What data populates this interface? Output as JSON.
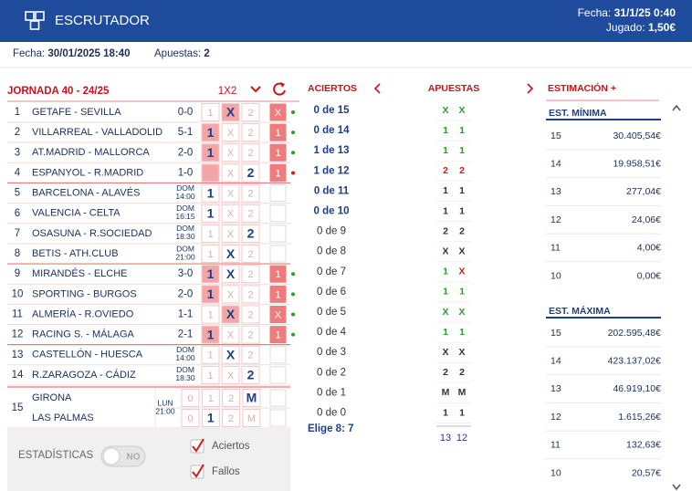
{
  "header": {
    "title": "ESCRUTADOR",
    "date_label": "Fecha:",
    "date": "31/1/25 0:40",
    "played_label": "Jugado:",
    "played": "1,50€"
  },
  "info": {
    "date_label": "Fecha:",
    "date": "30/01/2025 18:40",
    "bets_label": "Apuestas:",
    "bets": "2"
  },
  "left": {
    "title": "JORNADA 40 - 24/25",
    "mode": "1X2",
    "signs": [
      "1",
      "X",
      "2"
    ],
    "goal_signs": [
      "0",
      "1",
      "2",
      "M"
    ]
  },
  "matches": [
    {
      "n": "1",
      "teams": "GETAFE - SEVILLA",
      "score": "0-0",
      "sign": "X",
      "bet": [
        "X"
      ],
      "status": "hit"
    },
    {
      "n": "2",
      "teams": "VILLARREAL - VALLADOLID",
      "score": "5-1",
      "sign": "1",
      "bet": [
        "1"
      ],
      "status": "hit"
    },
    {
      "n": "3",
      "teams": "AT.MADRID - MALLORCA",
      "score": "2-0",
      "sign": "1",
      "bet": [
        "1"
      ],
      "status": "hit"
    },
    {
      "n": "4",
      "teams": "ESPANYOL - R.MADRID",
      "score": "1-0",
      "sign": "1",
      "bet": [
        "2"
      ],
      "status": "miss"
    },
    {
      "n": "5",
      "teams": "BARCELONA - ALAVÉS",
      "day": "DOM",
      "time": "14:00",
      "bet": [
        "1"
      ]
    },
    {
      "n": "6",
      "teams": "VALENCIA - CELTA",
      "day": "DOM",
      "time": "16:15",
      "bet": [
        "1"
      ]
    },
    {
      "n": "7",
      "teams": "OSASUNA - R.SOCIEDAD",
      "day": "DOM",
      "time": "18:30",
      "bet": [
        "2"
      ]
    },
    {
      "n": "8",
      "teams": "BETIS - ATH.CLUB",
      "day": "DOM",
      "time": "21:00",
      "bet": [
        "X"
      ]
    },
    {
      "n": "9",
      "teams": "MIRANDÉS - ELCHE",
      "score": "3-0",
      "sign": "1",
      "bet": [
        "1",
        "X"
      ],
      "status": "hit"
    },
    {
      "n": "10",
      "teams": "SPORTING - BURGOS",
      "score": "2-0",
      "sign": "1",
      "bet": [
        "1"
      ],
      "status": "hit"
    },
    {
      "n": "11",
      "teams": "ALMERÍA - R.OVIEDO",
      "score": "1-1",
      "sign": "X",
      "bet": [
        "X"
      ],
      "status": "hit"
    },
    {
      "n": "12",
      "teams": "RACING S. - MÁLAGA",
      "score": "2-1",
      "sign": "1",
      "bet": [
        "1"
      ],
      "status": "hit"
    },
    {
      "n": "13",
      "teams": "CASTELLÓN - HUESCA",
      "day": "DOM",
      "time": "14:00",
      "bet": [
        "X"
      ]
    },
    {
      "n": "14",
      "teams": "R.ZARAGOZA - CÁDIZ",
      "day": "DOM",
      "time": "18:30",
      "bet": [
        "2"
      ]
    }
  ],
  "pleno": {
    "n": "15",
    "home": "GIRONA",
    "away": "LAS PALMAS",
    "day": "LUN",
    "time": "21:00",
    "home_bet": [
      "M"
    ],
    "away_bet": [
      "1"
    ]
  },
  "middle": {
    "hits_label": "ACIERTOS",
    "bets_label": "APUESTAS",
    "rows": [
      {
        "label": "0 de 15",
        "bets": [
          "X",
          "X"
        ],
        "states": [
          "hit",
          "hit"
        ]
      },
      {
        "label": "0 de 14",
        "bets": [
          "1",
          "1"
        ],
        "states": [
          "hit",
          "hit"
        ]
      },
      {
        "label": "1 de 13",
        "bets": [
          "1",
          "1"
        ],
        "states": [
          "hit",
          "hit"
        ]
      },
      {
        "label": "1 de 12",
        "bets": [
          "2",
          "2"
        ],
        "states": [
          "miss",
          "miss"
        ]
      },
      {
        "label": "0 de 11",
        "bets": [
          "1",
          "1"
        ],
        "states": [
          "none",
          "none"
        ]
      },
      {
        "label": "0 de 10",
        "bets": [
          "1",
          "1"
        ],
        "states": [
          "none",
          "none"
        ]
      },
      {
        "label": "0 de 9",
        "bets": [
          "2",
          "2"
        ],
        "states": [
          "none",
          "none"
        ]
      },
      {
        "label": "0 de 8",
        "bets": [
          "X",
          "X"
        ],
        "states": [
          "none",
          "none"
        ]
      },
      {
        "label": "0 de 7",
        "bets": [
          "1",
          "X"
        ],
        "states": [
          "hit",
          "miss"
        ]
      },
      {
        "label": "0 de 6",
        "bets": [
          "1",
          "1"
        ],
        "states": [
          "hit",
          "hit"
        ]
      },
      {
        "label": "0 de 5",
        "bets": [
          "X",
          "X"
        ],
        "states": [
          "hit",
          "hit"
        ]
      },
      {
        "label": "0 de 4",
        "bets": [
          "1",
          "1"
        ],
        "states": [
          "hit",
          "hit"
        ]
      },
      {
        "label": "0 de 3",
        "bets": [
          "X",
          "X"
        ],
        "states": [
          "none",
          "none"
        ]
      },
      {
        "label": "0 de 2",
        "bets": [
          "2",
          "2"
        ],
        "states": [
          "none",
          "none"
        ]
      },
      {
        "label": "0 de 1",
        "bets": [
          "M",
          "M"
        ],
        "states": [
          "none",
          "none"
        ]
      },
      {
        "label": "0 de 0",
        "bets": [
          "1",
          "1"
        ],
        "states": [
          "none",
          "none"
        ]
      }
    ],
    "choose": "Elige 8: 7",
    "totals": [
      "13",
      "12"
    ]
  },
  "estimate": {
    "title": "ESTIMACIÓN +",
    "min": {
      "title": "EST. MÍNIMA",
      "rows": [
        {
          "hits": "15",
          "amount": "30.405,54€"
        },
        {
          "hits": "14",
          "amount": "19.958,51€"
        },
        {
          "hits": "13",
          "amount": "277,04€"
        },
        {
          "hits": "12",
          "amount": "24,06€"
        },
        {
          "hits": "11",
          "amount": "4,00€"
        },
        {
          "hits": "10",
          "amount": "0,00€"
        }
      ]
    },
    "max": {
      "title": "EST. MÁXIMA",
      "rows": [
        {
          "hits": "15",
          "amount": "202.595,48€"
        },
        {
          "hits": "14",
          "amount": "423.137,02€"
        },
        {
          "hits": "13",
          "amount": "46.919,10€"
        },
        {
          "hits": "12",
          "amount": "1.615,26€"
        },
        {
          "hits": "11",
          "amount": "132,63€"
        },
        {
          "hits": "10",
          "amount": "20,57€"
        }
      ]
    }
  },
  "footer": {
    "stats": "ESTADÍSTICAS",
    "toggle": "NO",
    "checks": [
      "Aciertos",
      "Fallos"
    ]
  }
}
